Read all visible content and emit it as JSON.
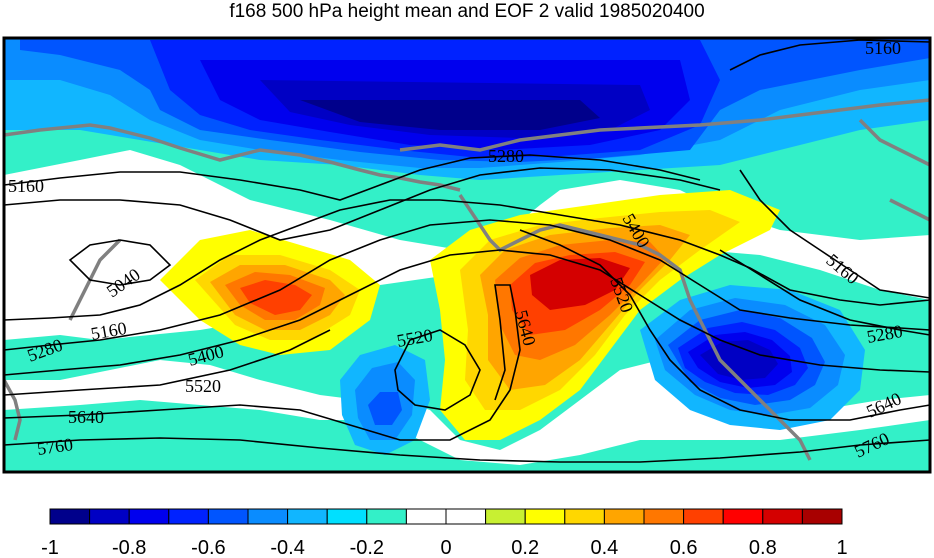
{
  "title": "f168 500 hPa height mean and EOF 2 valid 1985020400",
  "colorbar": {
    "colors": [
      "#00008b",
      "#0000c4",
      "#0000ee",
      "#0022ff",
      "#0055ff",
      "#0a8cff",
      "#11b6ff",
      "#00e0ff",
      "#33f0c8",
      "#ffffff",
      "#ffffff",
      "#c8f032",
      "#ffff00",
      "#ffd700",
      "#ffa500",
      "#ff7700",
      "#ff4000",
      "#ff0000",
      "#d40000",
      "#a80000"
    ],
    "tick_labels": [
      "-1",
      "-0.8",
      "-0.6",
      "-0.4",
      "-0.2",
      "0",
      "0.2",
      "0.4",
      "0.6",
      "0.8",
      "1"
    ]
  },
  "contour_labels": [
    {
      "text": "5160",
      "id": "top-right"
    },
    {
      "text": "5160",
      "id": "left"
    },
    {
      "text": "5280",
      "id": "upper"
    },
    {
      "text": "5040",
      "id": "left-low"
    },
    {
      "text": "5160",
      "id": "left-mid"
    },
    {
      "text": "5280",
      "id": "left-lower"
    },
    {
      "text": "5400",
      "id": "center-left"
    },
    {
      "text": "5520",
      "id": "center-left-low"
    },
    {
      "text": "5520",
      "id": "center"
    },
    {
      "text": "5640",
      "id": "center-right"
    },
    {
      "text": "5400",
      "id": "right-upper"
    },
    {
      "text": "5520",
      "id": "right-mid"
    },
    {
      "text": "5160",
      "id": "far-right-upper"
    },
    {
      "text": "5280",
      "id": "far-right"
    },
    {
      "text": "5640",
      "id": "far-right-low"
    },
    {
      "text": "5760",
      "id": "far-right-bottom"
    },
    {
      "text": "5640",
      "id": "left-bottom"
    },
    {
      "text": "5760",
      "id": "left-bottom2"
    }
  ]
}
